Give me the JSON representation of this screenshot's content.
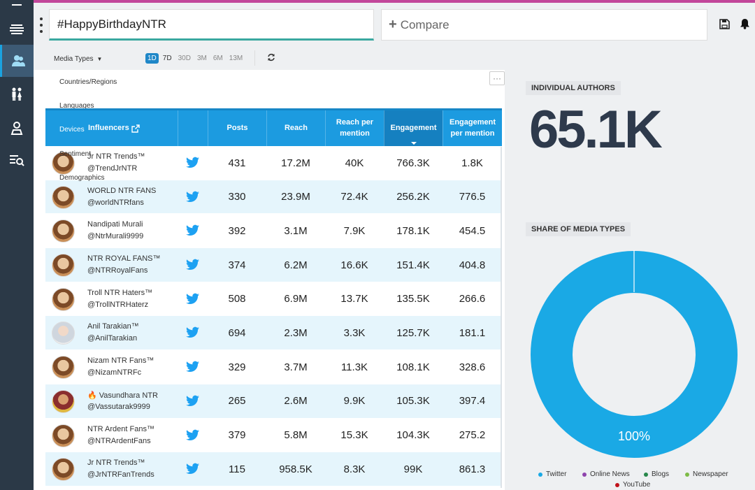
{
  "header": {
    "search_value": "#HappyBirthdayNTR",
    "compare_placeholder": "Compare",
    "compare_plus": "+"
  },
  "toolbar": {
    "media_types_label": "Media Types",
    "ranges": [
      "1D",
      "7D",
      "30D",
      "3M",
      "6M",
      "13M"
    ],
    "active_range": "1D"
  },
  "filters": {
    "items": [
      "Countries/Regions",
      "Languages",
      "Devices",
      "Sentiment",
      "Demographics"
    ]
  },
  "more_button": "···",
  "table": {
    "headers": {
      "influencers": "Influencers",
      "posts": "Posts",
      "reach": "Reach",
      "reach_per_mention_1": "Reach per",
      "reach_per_mention_2": "mention",
      "engagement": "Engagement",
      "engagement_per_mention_1": "Engagement",
      "engagement_per_mention_2": "per mention"
    },
    "sorted_column": "Engagement",
    "rows": [
      {
        "name": "Jr NTR Trends™",
        "handle": "@TrendJrNTR",
        "posts": "431",
        "reach": "17.2M",
        "rpm": "40K",
        "eng": "766.3K",
        "epm": "1.8K"
      },
      {
        "name": "WORLD NTR FANS",
        "handle": "@worldNTRfans",
        "posts": "330",
        "reach": "23.9M",
        "rpm": "72.4K",
        "eng": "256.2K",
        "epm": "776.5"
      },
      {
        "name": "Nandipati Murali",
        "handle": "@NtrMurali9999",
        "posts": "392",
        "reach": "3.1M",
        "rpm": "7.9K",
        "eng": "178.1K",
        "epm": "454.5"
      },
      {
        "name": "NTR ROYAL FANS™",
        "handle": "@NTRRoyalFans",
        "posts": "374",
        "reach": "6.2M",
        "rpm": "16.6K",
        "eng": "151.4K",
        "epm": "404.8"
      },
      {
        "name": "Troll NTR Haters™",
        "handle": "@TrollNTRHaterz",
        "posts": "508",
        "reach": "6.9M",
        "rpm": "13.7K",
        "eng": "135.5K",
        "epm": "266.6"
      },
      {
        "name": "Anil Tarakian™",
        "handle": "@AnilTarakian",
        "posts": "694",
        "reach": "2.3M",
        "rpm": "3.3K",
        "eng": "125.7K",
        "epm": "181.1"
      },
      {
        "name": "Nizam NTR Fans™",
        "handle": "@NizamNTRFc",
        "posts": "329",
        "reach": "3.7M",
        "rpm": "11.3K",
        "eng": "108.1K",
        "epm": "328.6"
      },
      {
        "name": "🔥 Vasundhara NTR",
        "handle": "@Vassutarak9999",
        "posts": "265",
        "reach": "2.6M",
        "rpm": "9.9K",
        "eng": "105.3K",
        "epm": "397.4"
      },
      {
        "name": "NTR Ardent Fans™",
        "handle": "@NTRArdentFans",
        "posts": "379",
        "reach": "5.8M",
        "rpm": "15.3K",
        "eng": "104.3K",
        "epm": "275.2"
      },
      {
        "name": "Jr NTR Trends™",
        "handle": "@JrNTRFanTrends",
        "posts": "115",
        "reach": "958.5K",
        "rpm": "8.3K",
        "eng": "99K",
        "epm": "861.3"
      }
    ]
  },
  "individual_authors": {
    "label": "INDIVIDUAL AUTHORS",
    "value": "65.1K"
  },
  "media_share": {
    "label": "SHARE OF MEDIA TYPES",
    "donut_label": "100%",
    "twitter_share": 100,
    "legend": [
      {
        "name": "Twitter",
        "color": "#1aa9e5"
      },
      {
        "name": "Online News",
        "color": "#8e44ad"
      },
      {
        "name": "Blogs",
        "color": "#27874a"
      },
      {
        "name": "Newspaper",
        "color": "#7dbb47"
      },
      {
        "name": "YouTube",
        "color": "#c0121a"
      }
    ]
  },
  "colors": {
    "accent": "#1c9be0",
    "sidebar": "#2b3947",
    "topline": "#c2479a"
  }
}
